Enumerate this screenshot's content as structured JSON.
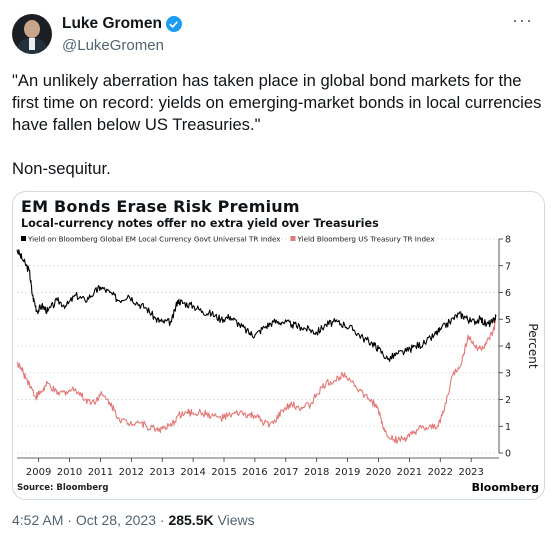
{
  "author": {
    "name": "Luke Gromen",
    "handle": "@LukeGromen",
    "verified_color": "#1d9bf0"
  },
  "more_icon": "more-horizontal-icon",
  "tweet": {
    "text": "\"An unlikely aberration has taken place in global bond markets for the first time on record: yields on emerging-market bonds in local currencies have fallen below US Treasuries.\"",
    "text2": "Non-sequitur."
  },
  "meta": {
    "time": "4:52 AM",
    "date": "Oct 28, 2023",
    "separator": "·",
    "views": "285.5K",
    "views_label": "Views"
  },
  "chart_data": {
    "type": "line",
    "title": "EM Bonds Erase Risk Premium",
    "subtitle": "Local-currency notes offer no extra yield over Treasuries",
    "ylabel": "Percent",
    "source": "Source: Bloomberg",
    "brand": "Bloomberg",
    "ylim": [
      0,
      8
    ],
    "xlim": [
      2008.3,
      2023.9
    ],
    "y_ticks": [
      0,
      1,
      2,
      3,
      4,
      5,
      6,
      7,
      8
    ],
    "x_ticks": [
      2009,
      2010,
      2011,
      2012,
      2013,
      2014,
      2015,
      2016,
      2017,
      2018,
      2019,
      2020,
      2021,
      2022,
      2023
    ],
    "grid": true,
    "legend_position": "top-left",
    "series": [
      {
        "name": "Yield on Bloomberg Global EM Local Currency Govt Universal TR Index",
        "color": "#000000",
        "x": [
          2008.3,
          2008.5,
          2008.7,
          2008.8,
          2008.95,
          2009.1,
          2009.3,
          2009.6,
          2009.9,
          2010.2,
          2010.5,
          2010.8,
          2011.0,
          2011.3,
          2011.6,
          2011.9,
          2012.2,
          2012.5,
          2012.8,
          2013.0,
          2013.3,
          2013.5,
          2013.7,
          2014.0,
          2014.3,
          2014.6,
          2014.9,
          2015.2,
          2015.5,
          2015.8,
          2016.0,
          2016.3,
          2016.6,
          2016.9,
          2017.2,
          2017.5,
          2017.8,
          2018.0,
          2018.3,
          2018.6,
          2018.9,
          2019.2,
          2019.5,
          2019.8,
          2020.0,
          2020.3,
          2020.6,
          2020.9,
          2021.2,
          2021.5,
          2021.8,
          2022.0,
          2022.3,
          2022.6,
          2022.8,
          2023.0,
          2023.3,
          2023.5,
          2023.7,
          2023.8
        ],
        "y": [
          7.6,
          7.2,
          6.8,
          5.9,
          5.3,
          5.5,
          5.3,
          5.7,
          5.5,
          5.9,
          5.7,
          6.0,
          6.2,
          6.0,
          5.7,
          5.9,
          5.6,
          5.4,
          5.0,
          4.9,
          4.9,
          5.7,
          5.6,
          5.5,
          5.3,
          5.2,
          5.0,
          5.1,
          4.8,
          4.5,
          4.4,
          4.7,
          4.9,
          4.9,
          4.8,
          4.7,
          4.6,
          4.5,
          4.8,
          4.9,
          4.8,
          4.6,
          4.3,
          4.1,
          3.9,
          3.5,
          3.7,
          3.8,
          4.0,
          4.1,
          4.4,
          4.6,
          4.9,
          5.2,
          5.1,
          4.9,
          5.0,
          4.8,
          4.9,
          5.1
        ]
      },
      {
        "name": "Yield Bloomberg US Treasury TR Index",
        "color": "#e07a78",
        "x": [
          2008.3,
          2008.5,
          2008.7,
          2008.9,
          2009.1,
          2009.3,
          2009.6,
          2009.9,
          2010.2,
          2010.5,
          2010.8,
          2011.0,
          2011.3,
          2011.6,
          2011.9,
          2012.2,
          2012.5,
          2012.8,
          2013.0,
          2013.3,
          2013.5,
          2013.8,
          2014.0,
          2014.3,
          2014.6,
          2014.9,
          2015.2,
          2015.5,
          2015.8,
          2016.0,
          2016.3,
          2016.6,
          2016.9,
          2017.2,
          2017.5,
          2017.8,
          2018.0,
          2018.3,
          2018.6,
          2018.9,
          2019.2,
          2019.5,
          2019.8,
          2020.0,
          2020.2,
          2020.5,
          2020.8,
          2021.0,
          2021.3,
          2021.6,
          2021.9,
          2022.1,
          2022.4,
          2022.7,
          2022.9,
          2023.1,
          2023.3,
          2023.5,
          2023.7,
          2023.8
        ],
        "y": [
          3.4,
          3.0,
          2.6,
          2.1,
          2.3,
          2.6,
          2.2,
          2.3,
          2.4,
          2.0,
          1.9,
          2.2,
          1.9,
          1.3,
          1.1,
          1.2,
          1.0,
          0.9,
          0.9,
          1.0,
          1.4,
          1.5,
          1.5,
          1.5,
          1.4,
          1.3,
          1.4,
          1.5,
          1.4,
          1.4,
          1.1,
          1.1,
          1.6,
          1.8,
          1.7,
          1.8,
          2.2,
          2.6,
          2.7,
          3.0,
          2.6,
          2.2,
          1.9,
          1.6,
          0.8,
          0.5,
          0.5,
          0.6,
          0.9,
          0.9,
          1.0,
          1.5,
          2.9,
          3.4,
          4.4,
          4.0,
          3.9,
          4.1,
          4.5,
          4.9
        ]
      }
    ]
  }
}
